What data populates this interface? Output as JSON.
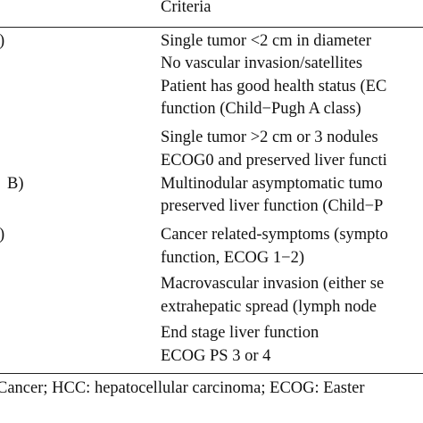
{
  "table": {
    "header": {
      "criteria": "Criteria"
    },
    "rows": [
      {
        "left": ")",
        "lines": [
          "Single tumor <2 cm in diameter",
          "No vascular invasion/satellites",
          "Patient has good health status (EC",
          "function (Child−Pugh A class)"
        ]
      },
      {
        "left": "",
        "lines": [
          "Single tumor >2 cm or 3 nodules",
          "ECOG0 and preserved liver functi"
        ]
      },
      {
        "left": "B)",
        "lines": [
          "Multinodular asymptomatic tumo",
          "preserved liver function (Child−P"
        ]
      },
      {
        "left": ")",
        "lines": [
          "Cancer related-symptoms (sympto",
          "function, ECOG 1−2)",
          "Macrovascular invasion (either se",
          "extrahepatic spread (lymph node"
        ]
      },
      {
        "left": "",
        "lines": [
          "End stage liver function",
          "ECOG PS 3 or 4"
        ]
      }
    ],
    "footnote": "Cancer; HCC: hepatocellular carcinoma; ECOG: Easter"
  }
}
